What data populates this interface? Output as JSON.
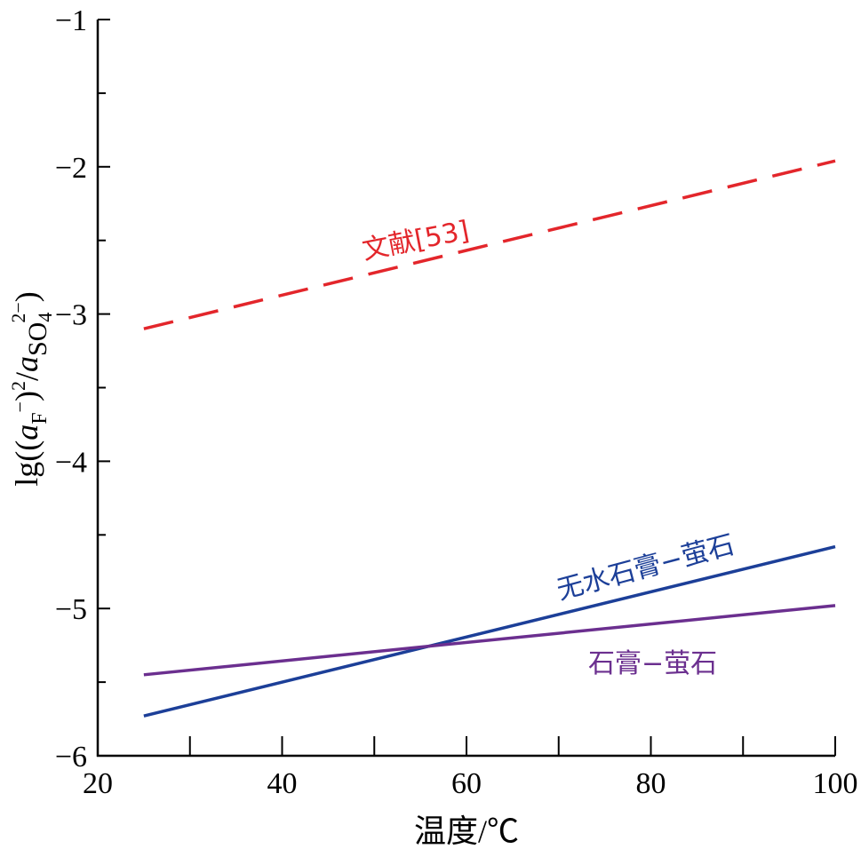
{
  "chart_data": {
    "type": "line",
    "title": "",
    "xlabel": "温度/℃",
    "ylabel": "lg((aF−)²/aSO4²−)",
    "ylabel_parts": [
      "lg((",
      "a",
      "F",
      "−",
      ")",
      "2",
      "/",
      "a",
      "SO",
      "4",
      "2−",
      ")"
    ],
    "xlim": [
      20,
      100
    ],
    "ylim": [
      -6,
      -1
    ],
    "xticks": [
      20,
      40,
      60,
      80,
      100
    ],
    "xticks_minor": [
      30,
      50,
      70,
      90
    ],
    "yticks": [
      -6,
      -5,
      -4,
      -3,
      -2,
      -1
    ],
    "yticks_minor": [
      -5.5,
      -4.5,
      -3.5,
      -2.5,
      -1.5
    ],
    "ytick_labels": [
      "−6",
      "−5",
      "−4",
      "−3",
      "−2",
      "−1"
    ],
    "grid": false,
    "series": [
      {
        "name": "文献[53]",
        "color": "#e3262b",
        "style": "dashed",
        "x": [
          25,
          100
        ],
        "y": [
          -3.1,
          -1.96
        ]
      },
      {
        "name": "无水石膏−萤石",
        "color": "#1c3f98",
        "style": "solid",
        "x": [
          25,
          100
        ],
        "y": [
          -5.73,
          -4.58
        ]
      },
      {
        "name": "石膏−萤石",
        "color": "#6b2f8f",
        "style": "solid",
        "x": [
          25,
          100
        ],
        "y": [
          -5.45,
          -4.98
        ]
      }
    ]
  }
}
